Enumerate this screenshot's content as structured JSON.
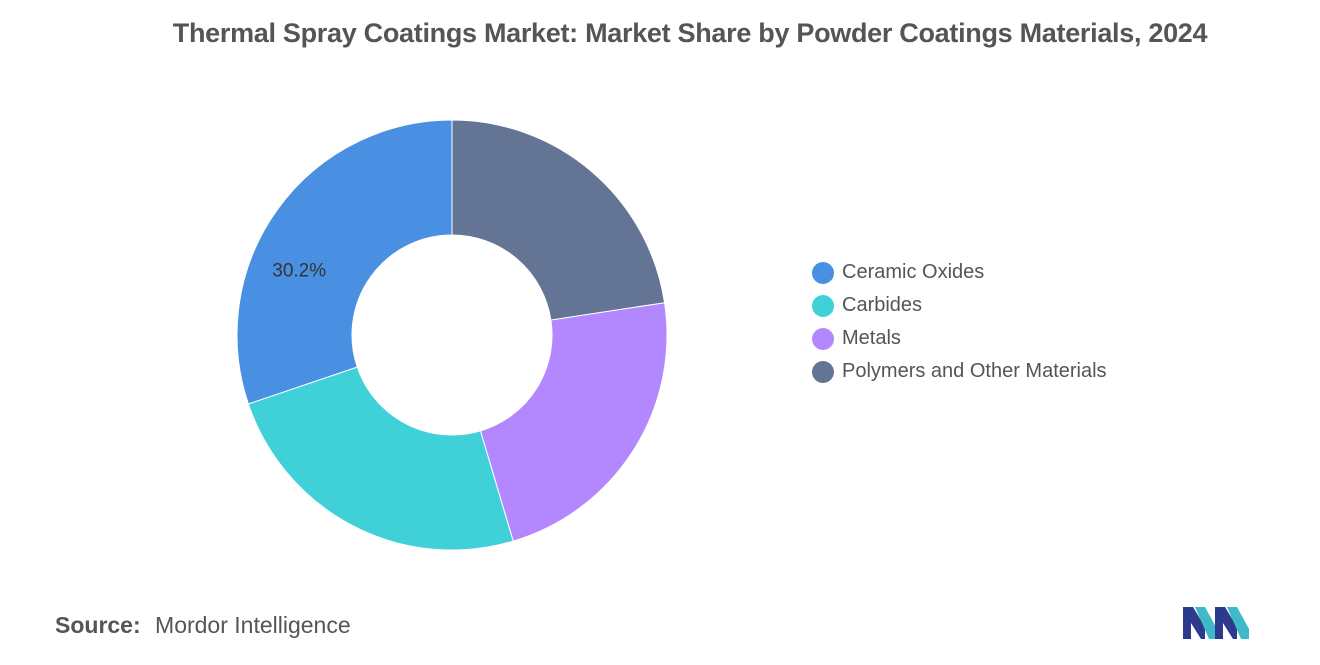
{
  "chart_data": {
    "type": "pie",
    "title": "Thermal Spray Coatings Market: Market Share by Powder Coatings Materials, 2024",
    "categories": [
      "Ceramic Oxides",
      "Carbides",
      "Metals",
      "Polymers and Other Materials"
    ],
    "values": [
      30.2,
      24.4,
      22.8,
      22.6
    ],
    "value_unit": "%",
    "data_labels": [
      {
        "category": "Ceramic Oxides",
        "text": "30.2%"
      }
    ],
    "style": "donut",
    "legend_position": "right",
    "colors": [
      "#4a90e2",
      "#40d0d8",
      "#b388ff",
      "#647495"
    ]
  },
  "source": {
    "label": "Source:",
    "text": "Mordor Intelligence"
  },
  "logo": {
    "icon": "mordor-intelligence-logo-icon",
    "colors": [
      "#2b3a8c",
      "#3fb8c8"
    ]
  }
}
